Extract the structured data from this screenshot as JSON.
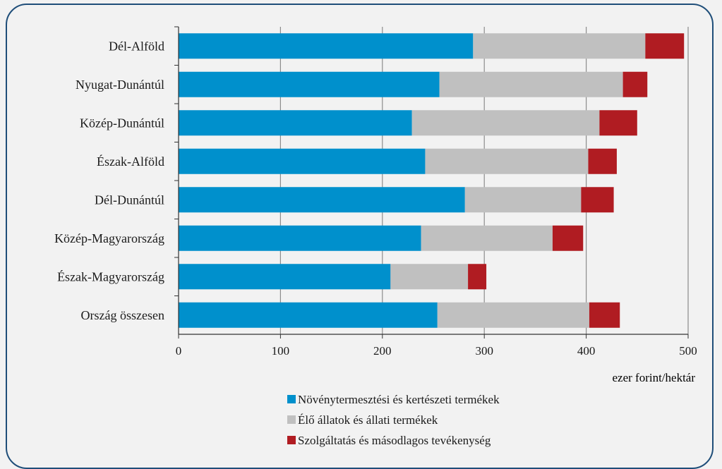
{
  "chart_data": {
    "type": "bar",
    "orientation": "horizontal",
    "stacked": true,
    "categories": [
      "Dél-Alföld",
      "Nyugat-Dunántúl",
      "Közép-Dunántúl",
      "Észak-Alföld",
      "Dél-Dunántúl",
      "Közép-Magyarország",
      "Észak-Magyarország",
      "Ország összesen"
    ],
    "series": [
      {
        "name": "Növénytermesztési és kertészeti termékek",
        "color": "#0090cc",
        "values": [
          289,
          256,
          229,
          242,
          281,
          238,
          208,
          254
        ]
      },
      {
        "name": "Élő állatok és állati termékek",
        "color": "#c0c0c0",
        "values": [
          169,
          180,
          184,
          160,
          114,
          129,
          76,
          149
        ]
      },
      {
        "name": "Szolgáltatás és másodlagos tevékenység",
        "color": "#b01c22",
        "values": [
          38,
          24,
          37,
          28,
          32,
          30,
          18,
          30
        ]
      }
    ],
    "xlim": [
      0,
      500
    ],
    "xticks": [
      "0",
      "100",
      "200",
      "300",
      "400",
      "500"
    ],
    "xlabel": "ezer forint/hektár",
    "title": "",
    "grid": true,
    "legend_position": "bottom"
  }
}
